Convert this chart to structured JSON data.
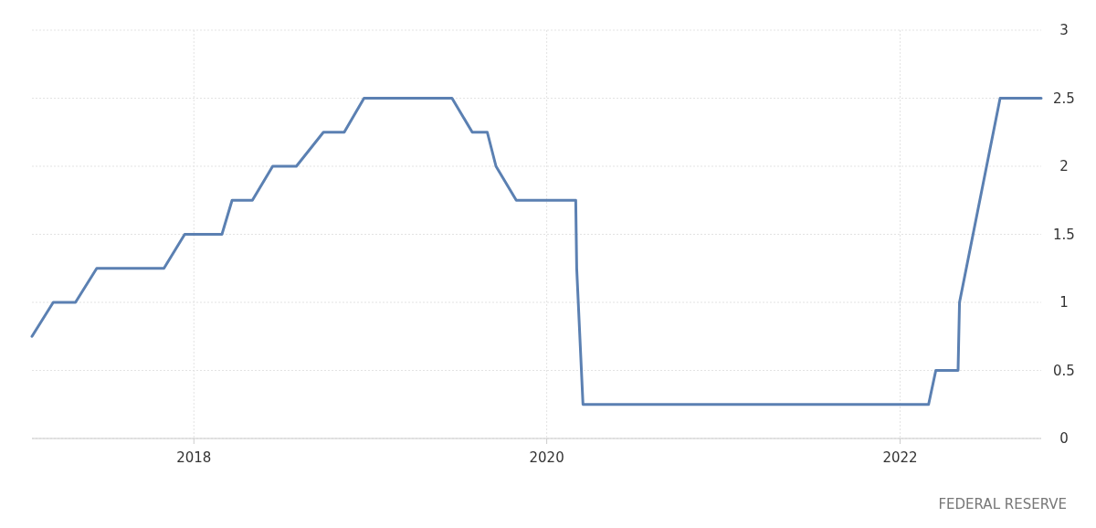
{
  "chart_data": {
    "type": "line",
    "x": [
      "2017-01-31",
      "2017-03-16",
      "2017-05-01",
      "2017-06-14",
      "2017-10-31",
      "2017-12-13",
      "2018-02-28",
      "2018-03-21",
      "2018-05-02",
      "2018-06-13",
      "2018-08-01",
      "2018-09-26",
      "2018-11-08",
      "2018-12-19",
      "2019-06-19",
      "2019-07-31",
      "2019-08-31",
      "2019-09-18",
      "2019-10-30",
      "2020-03-01",
      "2020-03-03",
      "2020-03-16",
      "2022-03-01",
      "2022-03-16",
      "2022-05-01",
      "2022-05-04",
      "2022-07-27",
      "2022-10-20"
    ],
    "series": [
      {
        "color": "#5b80b2",
        "values": [
          0.75,
          1,
          1,
          1.25,
          1.25,
          1.5,
          1.5,
          1.75,
          1.75,
          2,
          2,
          2.25,
          2.25,
          2.5,
          2.5,
          2.25,
          2.25,
          2,
          1.75,
          1.75,
          1.25,
          0.25,
          0.25,
          0.5,
          0.5,
          1,
          2.5,
          2.5
        ]
      }
    ],
    "xlim": [
      "2017-01-31",
      "2022-10-20"
    ],
    "xticks": [
      {
        "value": "2018",
        "label": "2018"
      },
      {
        "value": "2020",
        "label": "2020"
      },
      {
        "value": "2022",
        "label": "2022"
      }
    ],
    "ylim": [
      0,
      3
    ],
    "yticks": [
      0,
      0.5,
      1,
      1.5,
      2,
      2.5,
      3
    ],
    "grid": true,
    "marker": "none",
    "line_style": "solid",
    "annotations": [
      "FEDERAL RESERVE"
    ]
  }
}
